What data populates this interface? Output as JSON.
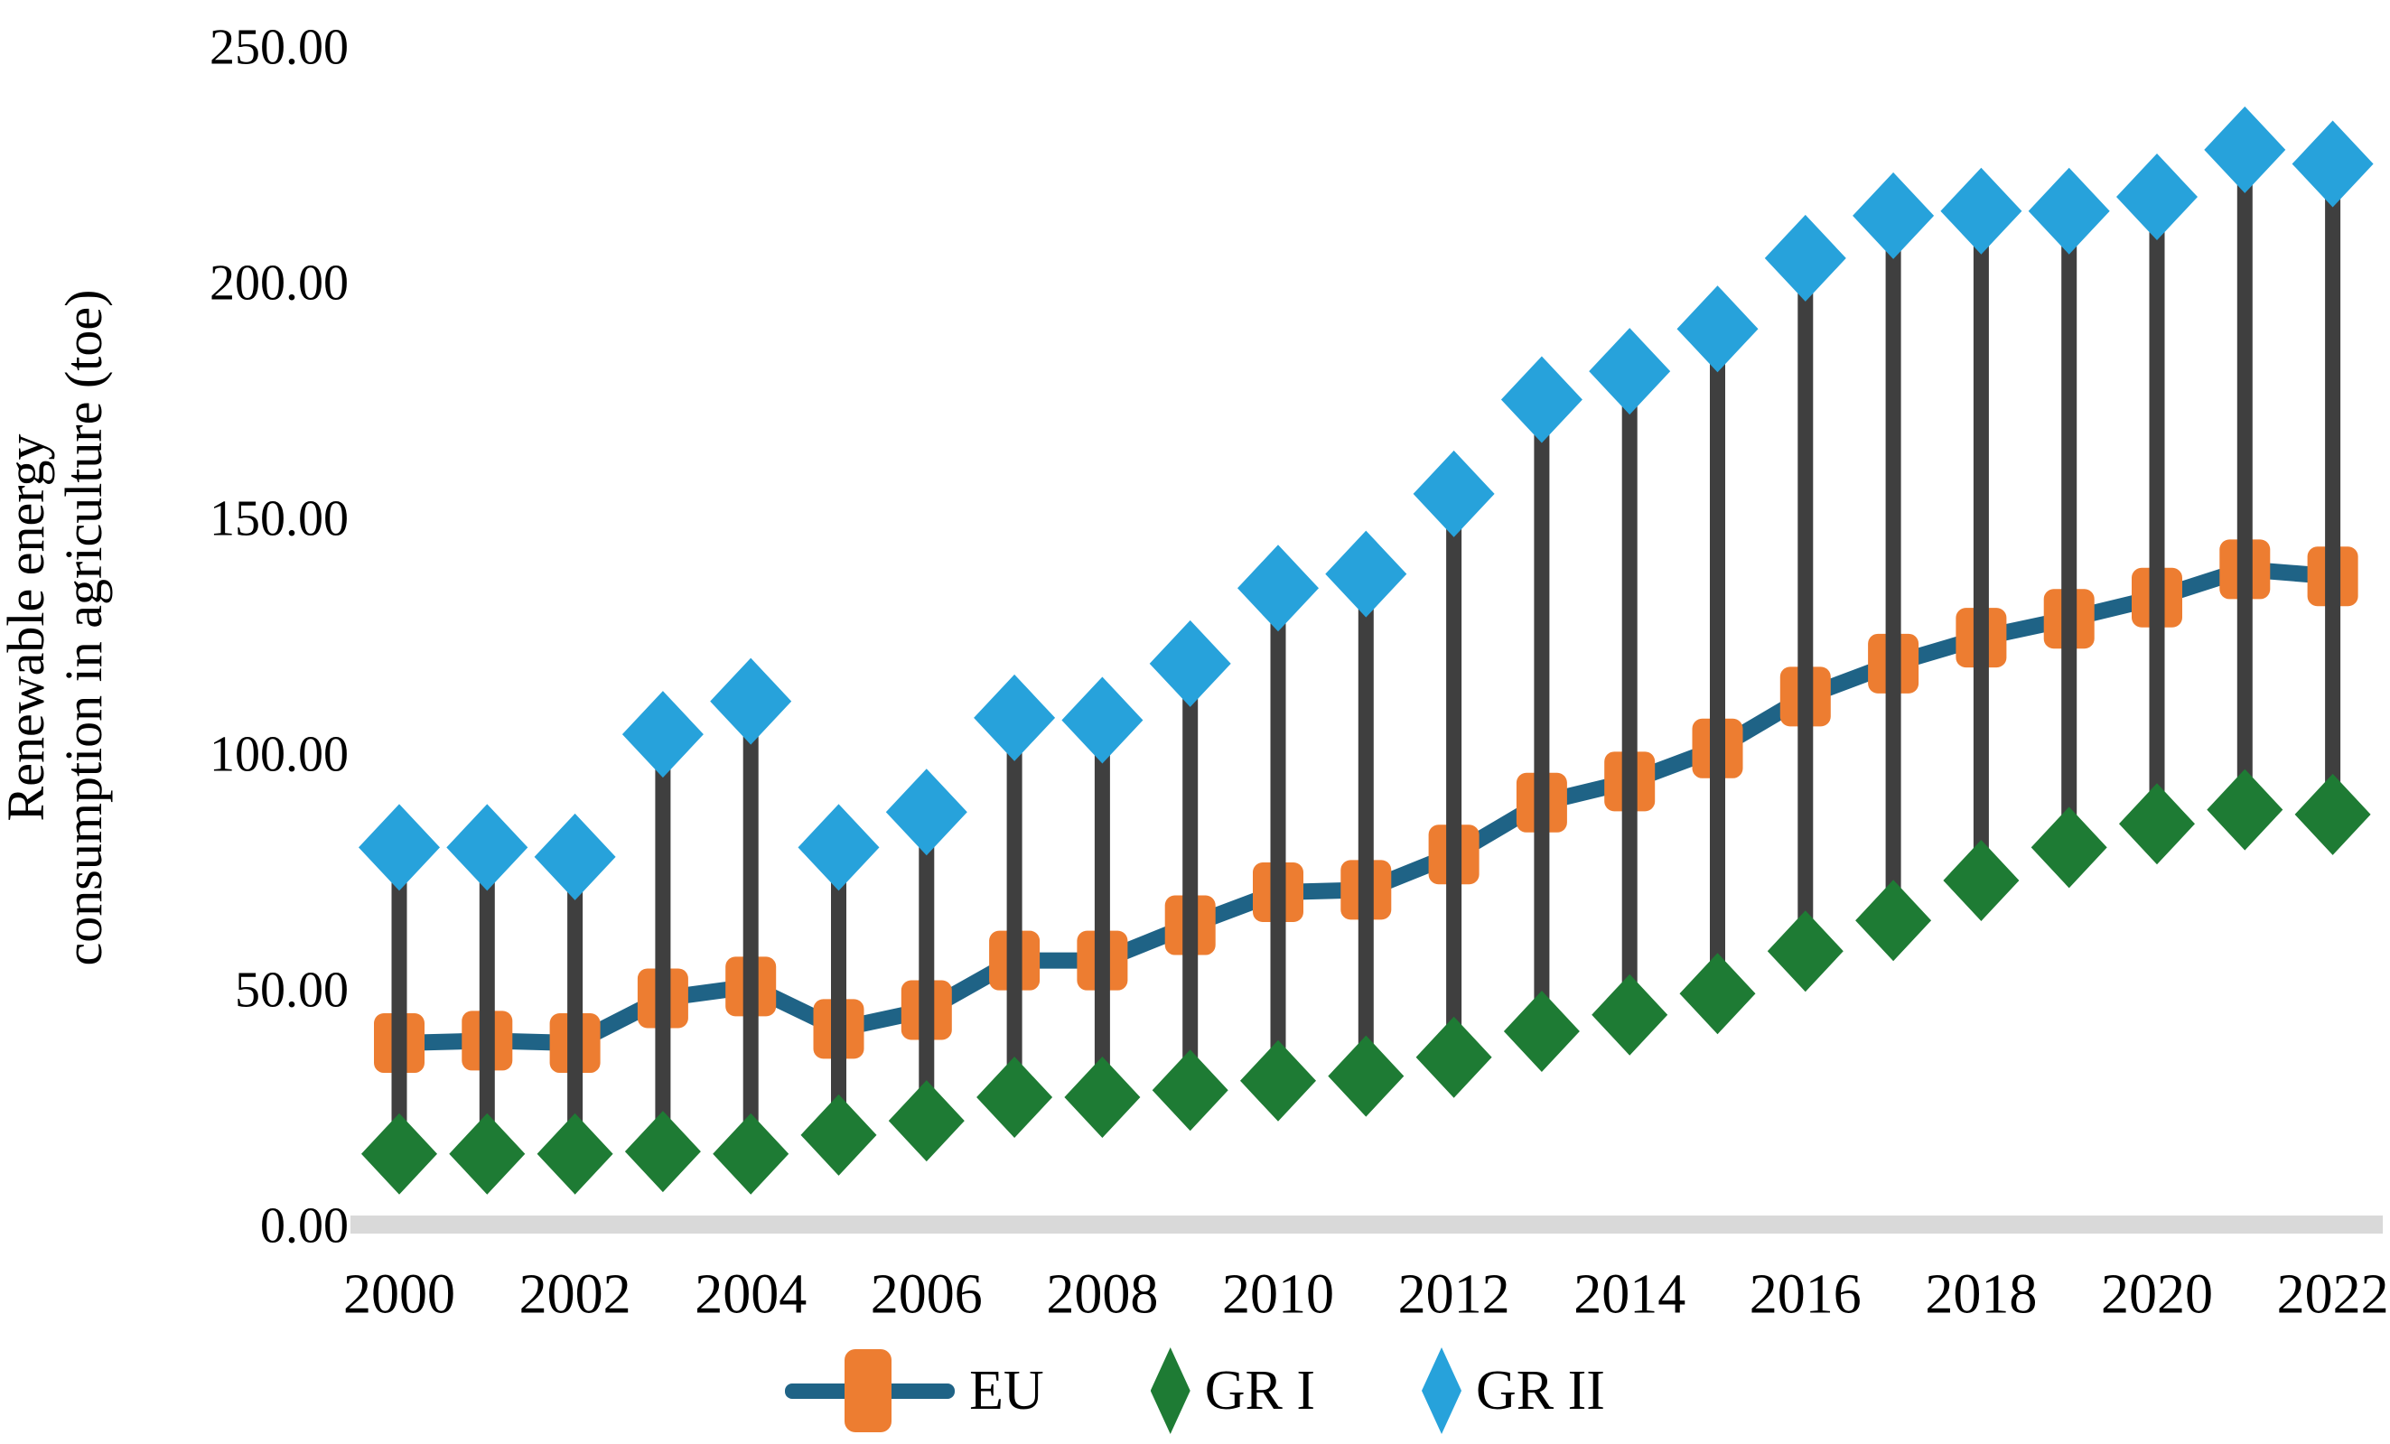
{
  "chart_data": {
    "type": "line",
    "title": "",
    "xlabel": "",
    "ylabel_line1": "Renewable energy",
    "ylabel_line2": "consumption in agriculture (toe)",
    "ylim": [
      0,
      250
    ],
    "ytick_labels": [
      "0.00",
      "50.00",
      "100.00",
      "150.00",
      "200.00",
      "250.00"
    ],
    "ytick_values": [
      0,
      50,
      100,
      150,
      200,
      250
    ],
    "xtick_labels": [
      "2000",
      "2002",
      "2004",
      "2006",
      "2008",
      "2010",
      "2012",
      "2014",
      "2016",
      "2018",
      "2020",
      "2022"
    ],
    "x": [
      2000,
      2001,
      2002,
      2003,
      2004,
      2005,
      2006,
      2007,
      2008,
      2009,
      2010,
      2011,
      2012,
      2013,
      2014,
      2015,
      2016,
      2017,
      2018,
      2019,
      2020,
      2021,
      2022
    ],
    "series": [
      {
        "name": "EU",
        "marker": "square",
        "values": [
          38.5,
          39,
          38.5,
          48,
          50.5,
          41.5,
          45.5,
          56,
          56,
          63.5,
          70.5,
          71,
          78.5,
          89.5,
          94,
          101,
          112,
          119,
          124.5,
          128.5,
          133,
          139,
          137.5
        ]
      },
      {
        "name": "GR I",
        "marker": "diamond",
        "values": [
          15,
          15,
          15,
          15.5,
          15,
          19,
          22,
          27,
          27,
          28.5,
          30.5,
          31.5,
          35.5,
          41,
          44.5,
          49,
          58,
          64.5,
          73,
          80,
          85,
          88,
          87
        ]
      },
      {
        "name": "GR II",
        "marker": "diamond",
        "values": [
          80,
          80,
          78,
          104,
          111,
          80,
          87.5,
          107.5,
          107,
          119,
          135,
          138,
          155,
          175,
          181,
          190,
          205,
          214,
          215,
          215,
          218,
          228,
          225
        ]
      }
    ],
    "high_low_lines": true,
    "legend_position": "bottom",
    "grid": false
  },
  "colors": {
    "eu_marker": "#ED7D31",
    "eu_line": "#1F6386",
    "gr1": "#1E7B34",
    "gr2": "#27A2DB",
    "high_low": "#3F3F3F",
    "baseline": "#D9D9D9",
    "text": "#000000",
    "background": "#FFFFFF"
  }
}
